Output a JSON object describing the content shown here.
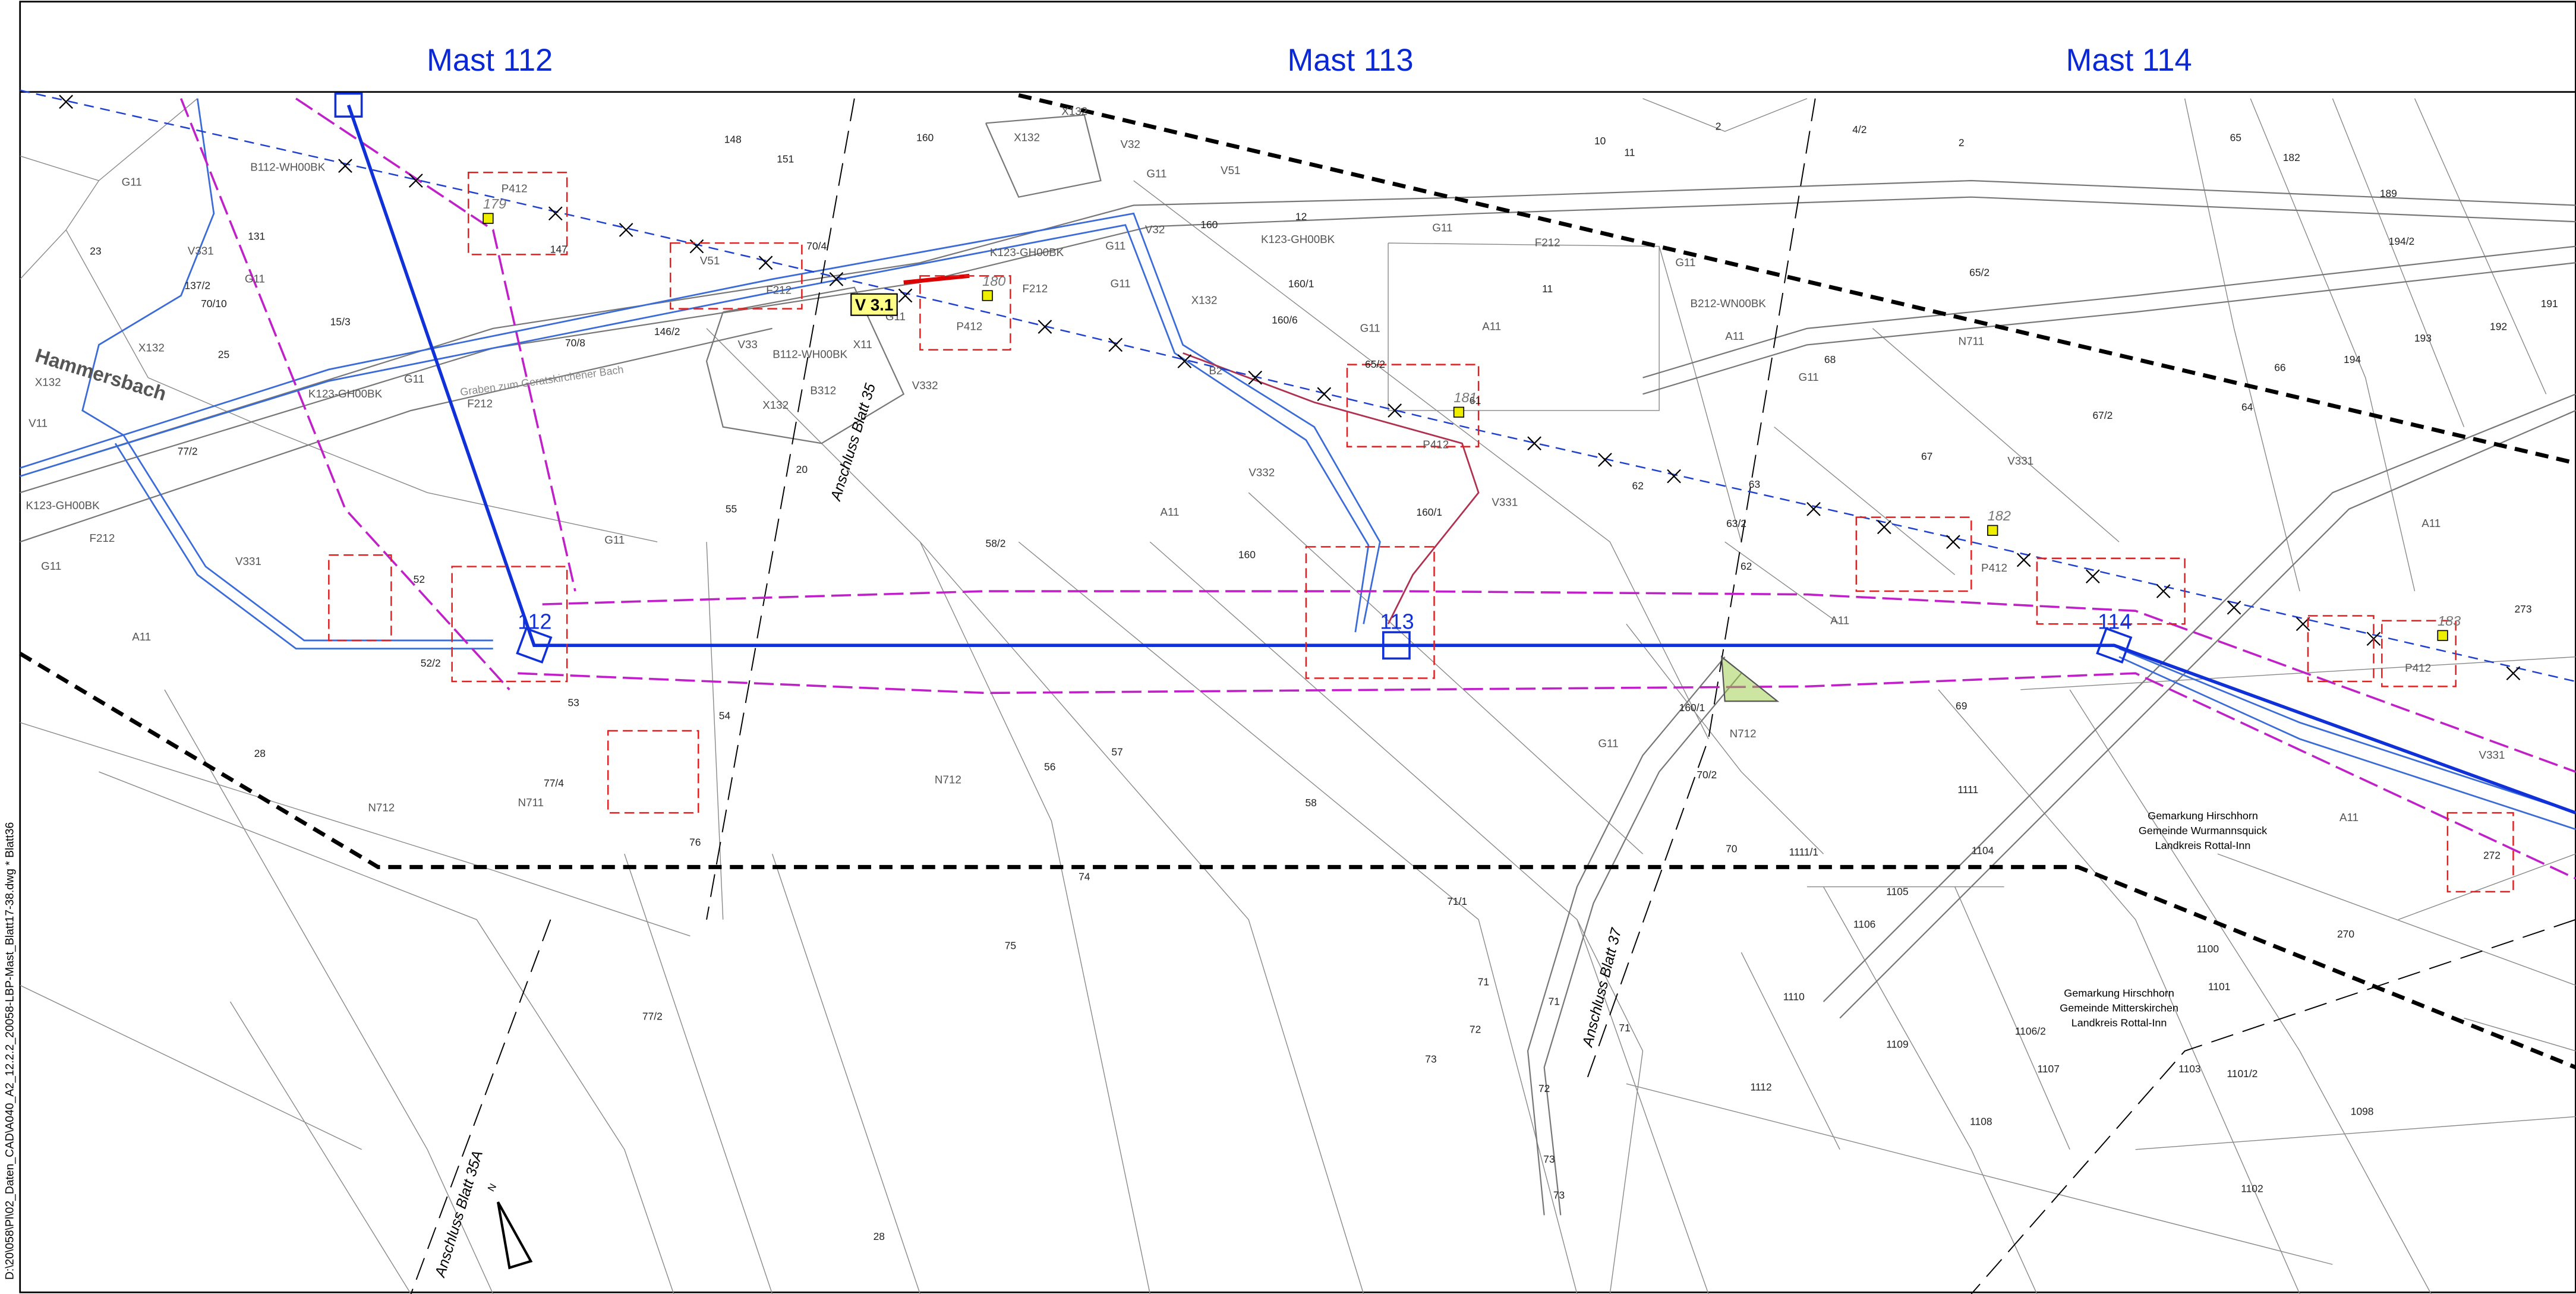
{
  "header": {
    "masts": [
      "Mast 112",
      "Mast 113",
      "Mast 114"
    ]
  },
  "mast_labels": [
    "112",
    "113",
    "114"
  ],
  "annotations": {
    "stream": "Hammersbach",
    "ditch": "Graben zum Geratskirchener Bach",
    "section": "V 3.1",
    "link_35": "Anschluss Blatt 35",
    "link_35a": "Anschluss Blatt 35A",
    "link_37": "Anschluss Blatt 37",
    "north": "N"
  },
  "districts": [
    [
      "Gemarkung Hirschhorn",
      "Gemeinde Wurmannsquick",
      "Landkreis Rottal-Inn"
    ],
    [
      "Gemarkung Hirschhorn",
      "Gemeinde Mitterskirchen",
      "Landkreis Rottal-Inn"
    ]
  ],
  "file_path": "D:\\20\\058\\Pl\\02_Daten_CAD\\A040_A2_12.2.2_20058-LBP-Mast_Blatt17-38.dwg * Blatt36",
  "marked_trees": [
    "179",
    "180",
    "181",
    "182",
    "183"
  ],
  "parcels": [
    "148",
    "151",
    "160",
    "23",
    "131",
    "137/2",
    "70/10",
    "25",
    "15/3",
    "147",
    "146/2",
    "70/8",
    "70/4",
    "20",
    "55",
    "58/2",
    "52",
    "52/2",
    "53",
    "54",
    "56",
    "57",
    "58",
    "74",
    "75",
    "76",
    "77/4",
    "77/2",
    "77/2",
    "28",
    "28",
    "71/1",
    "71",
    "71",
    "71",
    "72",
    "72",
    "73",
    "73",
    "73",
    "1110",
    "1109",
    "1112",
    "1108",
    "1107",
    "1106/2",
    "1105",
    "1106",
    "1104",
    "1111",
    "1111/1",
    "70",
    "70/2",
    "160/1",
    "69",
    "1103",
    "1101/2",
    "1101",
    "1100",
    "1098",
    "1102",
    "270",
    "272",
    "273",
    "65",
    "182",
    "189",
    "194/2",
    "191",
    "194",
    "193",
    "192",
    "66",
    "64",
    "65/2",
    "67",
    "67/2",
    "68",
    "63",
    "63/2",
    "62",
    "62",
    "2",
    "4/2",
    "10",
    "11",
    "2",
    "11",
    "12",
    "160",
    "160/1",
    "160/6",
    "160",
    "160/1",
    "65/2",
    "61"
  ],
  "codes": [
    "G11",
    "V331",
    "G11",
    "X132",
    "X132",
    "V11",
    "K123-GH00BK",
    "F212",
    "G11",
    "V331",
    "A11",
    "K123-GH00BK",
    "G11",
    "F212",
    "G11",
    "B112-WH00BK",
    "P412",
    "V51",
    "F212",
    "V33",
    "B112-WH00BK",
    "X11",
    "B312",
    "X132",
    "V332",
    "G11",
    "P412",
    "F212",
    "K123-GH00BK",
    "G11",
    "V32",
    "X132",
    "X132",
    "V32",
    "G11",
    "V51",
    "K123-GH00BK",
    "G11",
    "X132",
    "G11",
    "F212",
    "G11",
    "A11",
    "G11",
    "B212-WN00BK",
    "A11",
    "G11",
    "N711",
    "V331",
    "A11",
    "A11",
    "V332",
    "A11",
    "V331",
    "P412",
    "B2",
    "N712",
    "G11",
    "N712",
    "N712",
    "N711",
    "A11",
    "V331",
    "P412",
    "P412"
  ]
}
